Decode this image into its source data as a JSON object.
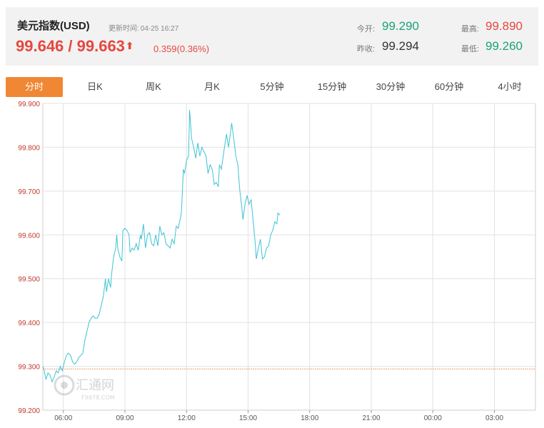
{
  "header": {
    "title": "美元指数(USD)",
    "updated_label": "更新时间:",
    "updated_time": "04-25 16:27",
    "price": "99.646 / 99.663",
    "change": "0.359(0.36%)",
    "open_label": "今开:",
    "open_value": "99.290",
    "prev_close_label": "昨收:",
    "prev_close_value": "99.294",
    "high_label": "最高:",
    "high_value": "99.890",
    "low_label": "最低:",
    "low_value": "99.260"
  },
  "tabs": [
    "分时",
    "日K",
    "周K",
    "月K",
    "5分钟",
    "15分钟",
    "30分钟",
    "60分钟",
    "4小时"
  ],
  "active_tab": "分时",
  "watermark": {
    "name": "汇通网",
    "site": "FX678.COM"
  },
  "colors": {
    "accent": "#f08734",
    "up": "#e5483f",
    "down": "#1aa37a",
    "line": "#3ec3d3",
    "ref_line": "#e3a070"
  },
  "chart_data": {
    "type": "line",
    "title": "",
    "xlabel": "",
    "ylabel": "",
    "x_ticks": [
      "06:00",
      "09:00",
      "12:00",
      "15:00",
      "18:00",
      "21:00",
      "00:00",
      "03:00"
    ],
    "y_ticks": [
      "99.900",
      "99.800",
      "99.700",
      "99.600",
      "99.500",
      "99.400",
      "99.300",
      "99.200"
    ],
    "ylim": [
      99.2,
      99.9
    ],
    "x_unit": "hours since 05:00",
    "x_range": [
      0,
      24
    ],
    "reference_line": 99.294,
    "grid": true,
    "series": [
      {
        "values": [
          [
            0.0,
            99.3
          ],
          [
            0.05,
            99.295
          ],
          [
            0.15,
            99.27
          ],
          [
            0.25,
            99.285
          ],
          [
            0.35,
            99.28
          ],
          [
            0.45,
            99.265
          ],
          [
            0.55,
            99.275
          ],
          [
            0.65,
            99.29
          ],
          [
            0.75,
            99.285
          ],
          [
            0.85,
            99.3
          ],
          [
            0.95,
            99.29
          ],
          [
            1.05,
            99.31
          ],
          [
            1.15,
            99.325
          ],
          [
            1.25,
            99.33
          ],
          [
            1.35,
            99.325
          ],
          [
            1.45,
            99.31
          ],
          [
            1.55,
            99.305
          ],
          [
            1.65,
            99.31
          ],
          [
            1.75,
            99.32
          ],
          [
            1.85,
            99.325
          ],
          [
            1.95,
            99.33
          ],
          [
            2.05,
            99.36
          ],
          [
            2.15,
            99.38
          ],
          [
            2.25,
            99.4
          ],
          [
            2.35,
            99.41
          ],
          [
            2.45,
            99.415
          ],
          [
            2.55,
            99.41
          ],
          [
            2.65,
            99.41
          ],
          [
            2.75,
            99.42
          ],
          [
            2.85,
            99.44
          ],
          [
            2.95,
            99.46
          ],
          [
            3.05,
            99.5
          ],
          [
            3.1,
            99.47
          ],
          [
            3.2,
            99.5
          ],
          [
            3.3,
            99.48
          ],
          [
            3.35,
            99.51
          ],
          [
            3.45,
            99.55
          ],
          [
            3.55,
            99.57
          ],
          [
            3.6,
            99.6
          ],
          [
            3.65,
            99.57
          ],
          [
            3.75,
            99.55
          ],
          [
            3.85,
            99.54
          ],
          [
            3.9,
            99.61
          ],
          [
            4.0,
            99.615
          ],
          [
            4.1,
            99.61
          ],
          [
            4.2,
            99.6
          ],
          [
            4.25,
            99.56
          ],
          [
            4.35,
            99.57
          ],
          [
            4.45,
            99.565
          ],
          [
            4.55,
            99.58
          ],
          [
            4.65,
            99.565
          ],
          [
            4.75,
            99.6
          ],
          [
            4.8,
            99.59
          ],
          [
            4.9,
            99.625
          ],
          [
            5.0,
            99.57
          ],
          [
            5.1,
            99.6
          ],
          [
            5.2,
            99.605
          ],
          [
            5.3,
            99.58
          ],
          [
            5.4,
            99.575
          ],
          [
            5.5,
            99.6
          ],
          [
            5.6,
            99.575
          ],
          [
            5.7,
            99.62
          ],
          [
            5.8,
            99.6
          ],
          [
            5.9,
            99.605
          ],
          [
            6.0,
            99.58
          ],
          [
            6.1,
            99.575
          ],
          [
            6.2,
            99.57
          ],
          [
            6.3,
            99.59
          ],
          [
            6.4,
            99.58
          ],
          [
            6.5,
            99.62
          ],
          [
            6.6,
            99.615
          ],
          [
            6.75,
            99.65
          ],
          [
            6.85,
            99.75
          ],
          [
            6.9,
            99.74
          ],
          [
            7.0,
            99.77
          ],
          [
            7.1,
            99.78
          ],
          [
            7.15,
            99.885
          ],
          [
            7.25,
            99.82
          ],
          [
            7.35,
            99.8
          ],
          [
            7.45,
            99.775
          ],
          [
            7.55,
            99.81
          ],
          [
            7.65,
            99.78
          ],
          [
            7.75,
            99.8
          ],
          [
            7.85,
            99.79
          ],
          [
            7.95,
            99.78
          ],
          [
            8.05,
            99.74
          ],
          [
            8.15,
            99.76
          ],
          [
            8.25,
            99.75
          ],
          [
            8.35,
            99.715
          ],
          [
            8.45,
            99.72
          ],
          [
            8.55,
            99.71
          ],
          [
            8.6,
            99.76
          ],
          [
            8.7,
            99.75
          ],
          [
            8.85,
            99.8
          ],
          [
            8.95,
            99.83
          ],
          [
            9.05,
            99.8
          ],
          [
            9.2,
            99.855
          ],
          [
            9.3,
            99.82
          ],
          [
            9.4,
            99.78
          ],
          [
            9.5,
            99.76
          ],
          [
            9.6,
            99.7
          ],
          [
            9.7,
            99.66
          ],
          [
            9.75,
            99.635
          ],
          [
            9.85,
            99.67
          ],
          [
            9.95,
            99.69
          ],
          [
            10.05,
            99.67
          ],
          [
            10.15,
            99.68
          ],
          [
            10.25,
            99.63
          ],
          [
            10.35,
            99.58
          ],
          [
            10.4,
            99.545
          ],
          [
            10.5,
            99.57
          ],
          [
            10.6,
            99.59
          ],
          [
            10.7,
            99.545
          ],
          [
            10.8,
            99.55
          ],
          [
            10.9,
            99.57
          ],
          [
            11.0,
            99.575
          ],
          [
            11.1,
            99.6
          ],
          [
            11.2,
            99.61
          ],
          [
            11.3,
            99.63
          ],
          [
            11.4,
            99.625
          ],
          [
            11.45,
            99.65
          ],
          [
            11.55,
            99.645
          ]
        ]
      }
    ]
  }
}
